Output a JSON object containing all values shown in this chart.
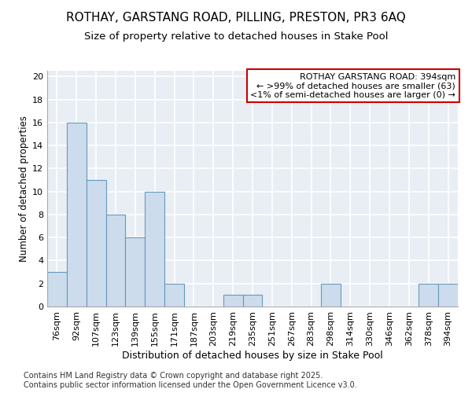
{
  "title": "ROTHAY, GARSTANG ROAD, PILLING, PRESTON, PR3 6AQ",
  "subtitle": "Size of property relative to detached houses in Stake Pool",
  "xlabel": "Distribution of detached houses by size in Stake Pool",
  "ylabel": "Number of detached properties",
  "categories": [
    "76sqm",
    "92sqm",
    "107sqm",
    "123sqm",
    "139sqm",
    "155sqm",
    "171sqm",
    "187sqm",
    "203sqm",
    "219sqm",
    "235sqm",
    "251sqm",
    "267sqm",
    "283sqm",
    "298sqm",
    "314sqm",
    "330sqm",
    "346sqm",
    "362sqm",
    "378sqm",
    "394sqm"
  ],
  "values": [
    3,
    16,
    11,
    8,
    6,
    10,
    2,
    0,
    0,
    1,
    1,
    0,
    0,
    0,
    2,
    0,
    0,
    0,
    0,
    2,
    2
  ],
  "bar_color": "#ccdcec",
  "bar_edge_color": "#6699bb",
  "annotation_box_text": "ROTHAY GARSTANG ROAD: 394sqm\n← >99% of detached houses are smaller (63)\n<1% of semi-detached houses are larger (0) →",
  "annotation_box_facecolor": "#ffffff",
  "annotation_box_edge_color": "#cc0000",
  "footer_text": "Contains HM Land Registry data © Crown copyright and database right 2025.\nContains public sector information licensed under the Open Government Licence v3.0.",
  "yticks": [
    0,
    2,
    4,
    6,
    8,
    10,
    12,
    14,
    16,
    18,
    20
  ],
  "ylim": [
    0,
    20.5
  ],
  "background_color": "#e8eef4",
  "grid_color": "#ffffff",
  "title_fontsize": 11,
  "subtitle_fontsize": 9.5,
  "xlabel_fontsize": 9,
  "ylabel_fontsize": 8.5,
  "tick_fontsize": 8,
  "annotation_fontsize": 8,
  "footer_fontsize": 7
}
